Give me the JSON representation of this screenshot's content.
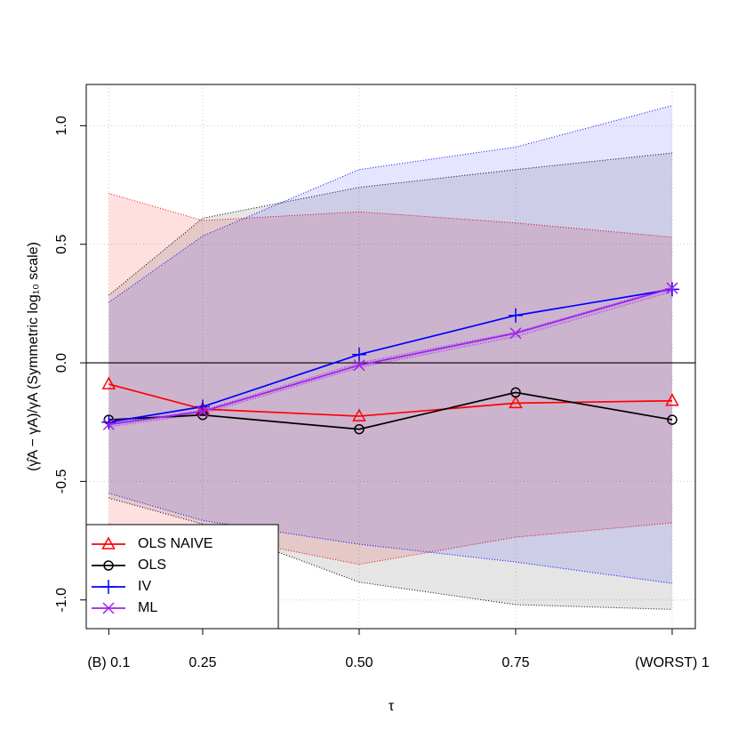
{
  "chart_data": {
    "type": "line",
    "xlabel": "τ",
    "ylabel": "(γ̂A − γA)/γA (Symmetric log₁₀ scale)",
    "x": [
      0.1,
      0.25,
      0.5,
      0.75,
      1
    ],
    "xlim": [
      0.064,
      1.037
    ],
    "ylim": [
      -1.121,
      1.174
    ],
    "xticks": [
      {
        "value": 0.1,
        "label": "(B) 0.1"
      },
      0.25,
      {
        "value": 0.5,
        "label": "0.50"
      },
      0.75,
      {
        "value": 1,
        "label": "(WORST) 1"
      }
    ],
    "yticks": [
      {
        "value": -1,
        "label": "-1.0"
      },
      -0.5,
      {
        "value": 0,
        "label": "0.0"
      },
      0.5,
      {
        "value": 1,
        "label": "1.0"
      }
    ],
    "grid": true,
    "legend": "bottomleft",
    "series": [
      {
        "name": "OLS NAIVE",
        "color": "#ff0000",
        "fill": "rgba(255,0,0,0.12)",
        "marker": "triangle",
        "values": [
          -0.09,
          -0.195,
          -0.225,
          -0.17,
          -0.16
        ],
        "upper": [
          0.715,
          0.6,
          0.637,
          0.59,
          0.53
        ],
        "lower": [
          -0.68,
          -0.72,
          -0.85,
          -0.735,
          -0.675
        ]
      },
      {
        "name": "OLS",
        "color": "#000000",
        "fill": "rgba(0,0,0,0.1)",
        "marker": "circle",
        "values": [
          -0.24,
          -0.22,
          -0.28,
          -0.125,
          -0.24
        ],
        "upper": [
          0.285,
          0.61,
          0.74,
          0.815,
          0.885
        ],
        "lower": [
          -0.57,
          -0.68,
          -0.925,
          -1.02,
          -1.04
        ]
      },
      {
        "name": "IV",
        "color": "#0000ff",
        "fill": "rgba(0,0,255,0.1)",
        "marker": "plus",
        "values": [
          -0.25,
          -0.185,
          0.035,
          0.2,
          0.31
        ],
        "upper": [
          0.255,
          0.535,
          0.815,
          0.91,
          1.085
        ],
        "lower": [
          -0.55,
          -0.665,
          -0.765,
          -0.84,
          -0.93
        ]
      },
      {
        "name": "ML",
        "color": "#a020f0",
        "fill": "rgba(160,32,240,0.1)",
        "marker": "x",
        "values": [
          -0.26,
          -0.205,
          -0.01,
          0.125,
          0.315
        ],
        "upper": [
          -0.255,
          -0.2,
          0.0,
          0.13,
          0.32
        ],
        "lower": [
          -0.27,
          -0.215,
          -0.02,
          0.11,
          0.3
        ]
      }
    ]
  }
}
